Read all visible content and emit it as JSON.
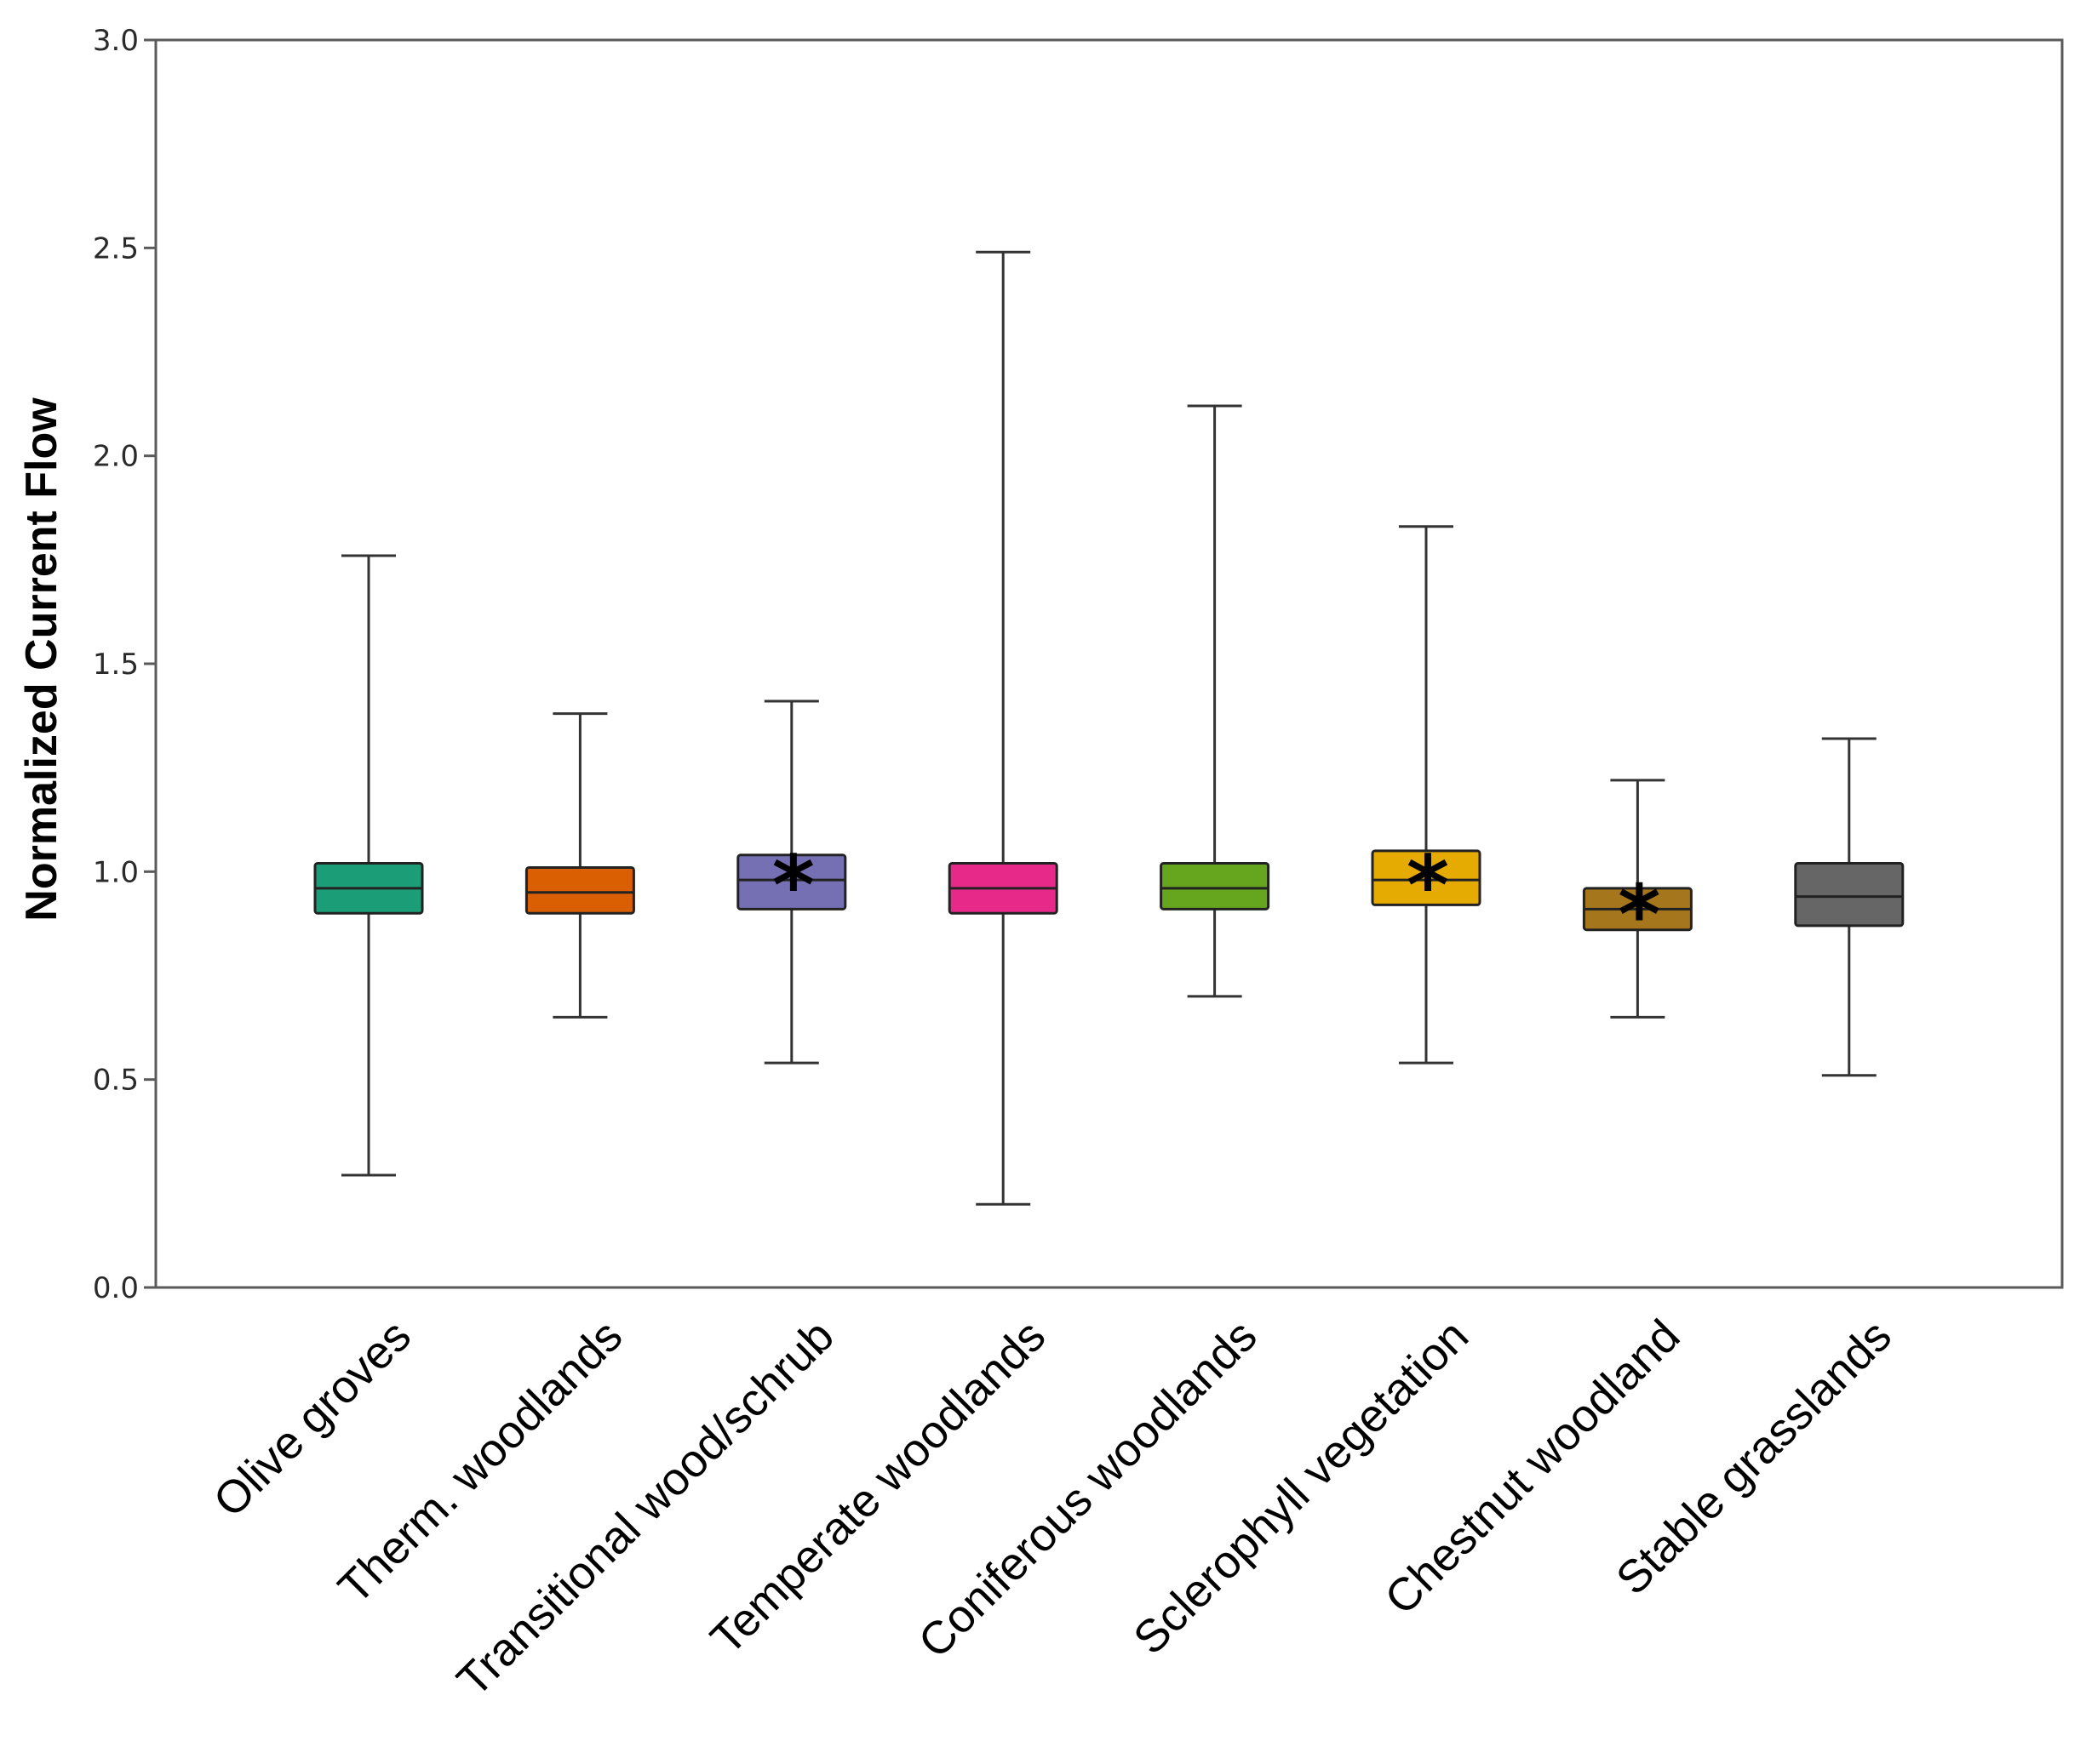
{
  "chart_data": {
    "type": "boxplot",
    "title": "",
    "xlabel": "",
    "ylabel": "Normalized Current Flow",
    "ylim": [
      0,
      3.0
    ],
    "yticks": [
      0.0,
      0.5,
      1.0,
      1.5,
      2.0,
      2.5,
      3.0
    ],
    "ytick_labels": [
      "0.0",
      "0.5",
      "1.0",
      "1.5",
      "2.0",
      "2.5",
      "3.0"
    ],
    "grid": false,
    "categories": [
      "Olive groves",
      "Therm. woodlands",
      "Transitional wood/schrub",
      "Temperate woodlands",
      "Coniferous woodlands",
      "Sclerophyll vegetation",
      "Chestnut woodland",
      "Stable grasslands"
    ],
    "boxes": [
      {
        "category": "Olive groves",
        "whisker_low": 0.27,
        "q1": 0.9,
        "median": 0.96,
        "q3": 1.02,
        "whisker_high": 1.76,
        "color": "#1b9e77",
        "marker": ""
      },
      {
        "category": "Therm. woodlands",
        "whisker_low": 0.65,
        "q1": 0.9,
        "median": 0.95,
        "q3": 1.01,
        "whisker_high": 1.38,
        "color": "#d95f02",
        "marker": ""
      },
      {
        "category": "Transitional wood/schrub",
        "whisker_low": 0.54,
        "q1": 0.91,
        "median": 0.98,
        "q3": 1.04,
        "whisker_high": 1.41,
        "color": "#7570b3",
        "marker": "*"
      },
      {
        "category": "Temperate woodlands",
        "whisker_low": 0.2,
        "q1": 0.9,
        "median": 0.96,
        "q3": 1.02,
        "whisker_high": 2.49,
        "color": "#e7298a",
        "marker": ""
      },
      {
        "category": "Coniferous woodlands",
        "whisker_low": 0.7,
        "q1": 0.91,
        "median": 0.96,
        "q3": 1.02,
        "whisker_high": 2.12,
        "color": "#66a61e",
        "marker": ""
      },
      {
        "category": "Sclerophyll vegetation",
        "whisker_low": 0.54,
        "q1": 0.92,
        "median": 0.98,
        "q3": 1.05,
        "whisker_high": 1.83,
        "color": "#e6ab02",
        "marker": "*"
      },
      {
        "category": "Chestnut woodland",
        "whisker_low": 0.65,
        "q1": 0.86,
        "median": 0.91,
        "q3": 0.96,
        "whisker_high": 1.22,
        "color": "#a6761d",
        "marker": "*"
      },
      {
        "category": "Stable grasslands",
        "whisker_low": 0.51,
        "q1": 0.87,
        "median": 0.94,
        "q3": 1.02,
        "whisker_high": 1.32,
        "color": "#666666",
        "marker": ""
      }
    ]
  }
}
